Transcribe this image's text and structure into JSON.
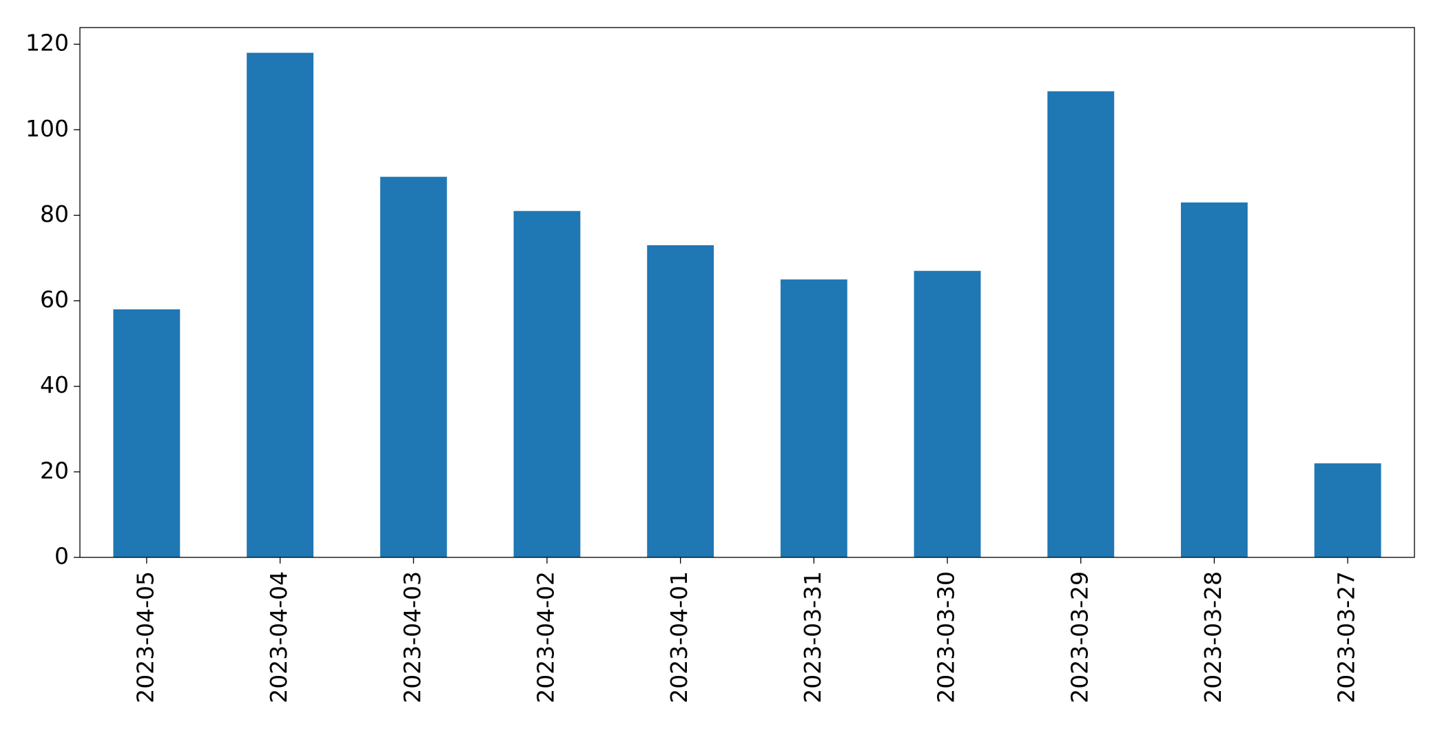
{
  "chart_data": {
    "type": "bar",
    "categories": [
      "2023-04-05",
      "2023-04-04",
      "2023-04-03",
      "2023-04-02",
      "2023-04-01",
      "2023-03-31",
      "2023-03-30",
      "2023-03-29",
      "2023-03-28",
      "2023-03-27"
    ],
    "values": [
      58,
      118,
      89,
      81,
      73,
      65,
      67,
      109,
      83,
      22
    ],
    "color": "#1f77b4",
    "ylim": [
      0,
      123.9
    ],
    "yticks": [
      0,
      20,
      40,
      60,
      80,
      100,
      120
    ],
    "grid": false
  }
}
